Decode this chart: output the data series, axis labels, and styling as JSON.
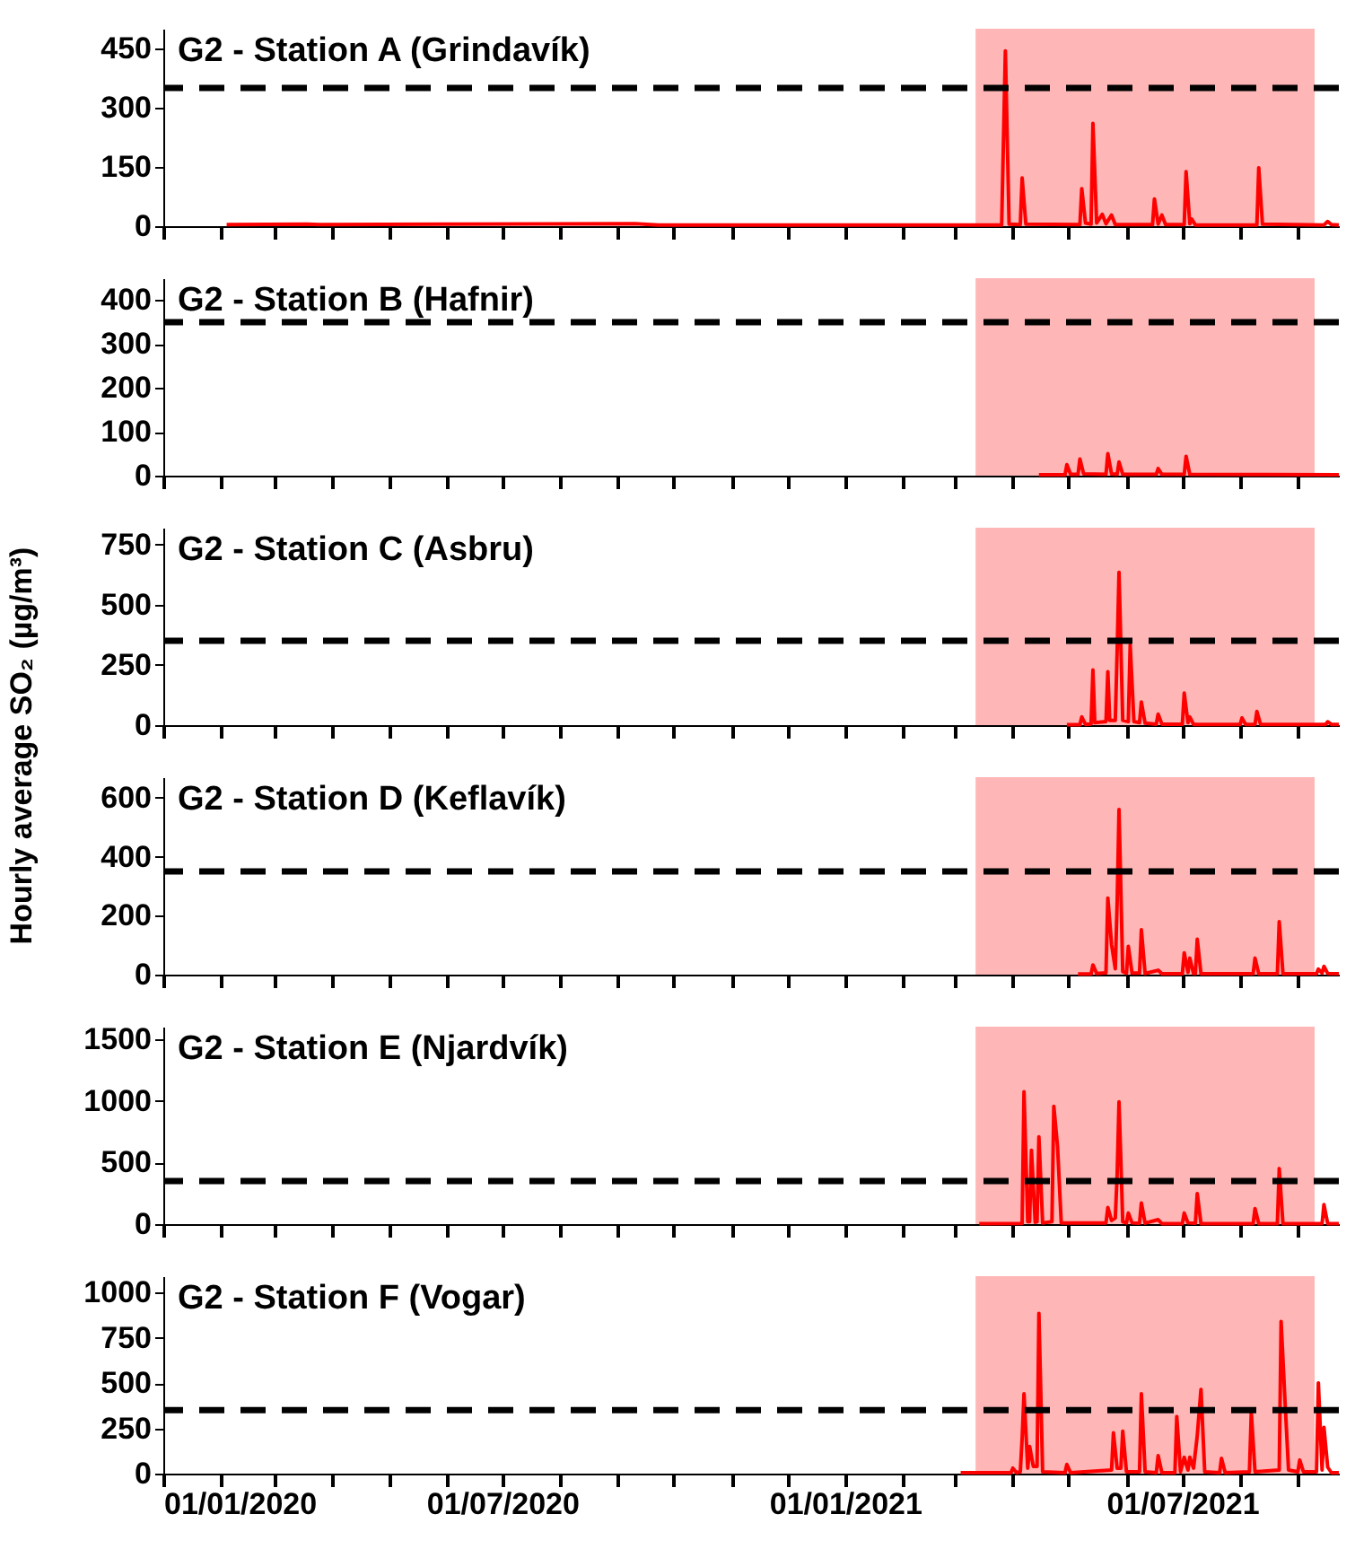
{
  "chart_data": [
    {
      "type": "line",
      "title": "G2 - Station A (Grindavík)",
      "xlim": [
        "2020-01-01",
        "2021-09-23"
      ],
      "ylim": [
        0,
        500
      ],
      "yticks": [
        0,
        150,
        300,
        450
      ],
      "tick_labels": "y",
      "line_style": "solid",
      "marker": "none",
      "xticks": [
        {
          "value": "2020-01-01",
          "label": null
        },
        {
          "value": "2020-02-01",
          "label": null
        },
        {
          "value": "2020-03-01",
          "label": null
        },
        {
          "value": "2020-04-01",
          "label": null
        },
        {
          "value": "2020-05-01",
          "label": null
        },
        {
          "value": "2020-06-01",
          "label": null
        },
        {
          "value": "2020-07-01",
          "label": null
        },
        {
          "value": "2020-08-01",
          "label": null
        },
        {
          "value": "2020-09-01",
          "label": null
        },
        {
          "value": "2020-10-01",
          "label": null
        },
        {
          "value": "2020-11-01",
          "label": null
        },
        {
          "value": "2020-12-01",
          "label": null
        },
        {
          "value": "2021-01-01",
          "label": null
        },
        {
          "value": "2021-02-01",
          "label": null
        },
        {
          "value": "2021-03-01",
          "label": null
        },
        {
          "value": "2021-04-01",
          "label": null
        },
        {
          "value": "2021-05-01",
          "label": null
        },
        {
          "value": "2021-06-01",
          "label": null
        },
        {
          "value": "2021-07-01",
          "label": null
        },
        {
          "value": "2021-08-01",
          "label": null
        },
        {
          "value": "2021-09-01",
          "label": null
        }
      ],
      "ref_lines": [
        {
          "axis": "y",
          "value": 350,
          "color": "#000000",
          "line_style": "dashed"
        }
      ],
      "bands": [
        {
          "axis": "x",
          "from": "2021-03-12",
          "to": "2021-09-10",
          "color": "#ffb6b6"
        }
      ],
      "series": [
        {
          "color": "#ff0000",
          "x": [
            "2020-02-04",
            "2020-03-18",
            "2020-03-25",
            "2020-06-01",
            "2020-09-10",
            "2020-09-23",
            "2021-02-16",
            "2021-03-26",
            "2021-03-28",
            "2021-03-30",
            "2021-04-05",
            "2021-04-06",
            "2021-04-08",
            "2021-05-07",
            "2021-05-08",
            "2021-05-10",
            "2021-05-13",
            "2021-05-14",
            "2021-05-16",
            "2021-05-19",
            "2021-05-21",
            "2021-05-24",
            "2021-05-26",
            "2021-06-15",
            "2021-06-16",
            "2021-06-18",
            "2021-06-20",
            "2021-06-22",
            "2021-07-02",
            "2021-07-03",
            "2021-07-05",
            "2021-07-06",
            "2021-07-08",
            "2021-08-10",
            "2021-08-11",
            "2021-08-13",
            "2021-09-15",
            "2021-09-17",
            "2021-09-19",
            "2021-09-23"
          ],
          "values": [
            4,
            5,
            4,
            5,
            6,
            3,
            3,
            3,
            444,
            5,
            4,
            122,
            5,
            4,
            95,
            8,
            5,
            260,
            8,
            30,
            6,
            28,
            4,
            4,
            69,
            5,
            28,
            4,
            4,
            138,
            6,
            18,
            3,
            3,
            148,
            5,
            3,
            12,
            4,
            3
          ]
        }
      ]
    },
    {
      "type": "line",
      "title": "G2 - Station B (Hafnir)",
      "xlim": [
        "2020-01-01",
        "2021-09-23"
      ],
      "ylim": [
        0,
        450
      ],
      "yticks": [
        0,
        100,
        200,
        300,
        400
      ],
      "tick_labels": "y",
      "line_style": "solid",
      "marker": "none",
      "xticks": [
        {
          "value": "2020-01-01",
          "label": null
        },
        {
          "value": "2020-02-01",
          "label": null
        },
        {
          "value": "2020-03-01",
          "label": null
        },
        {
          "value": "2020-04-01",
          "label": null
        },
        {
          "value": "2020-05-01",
          "label": null
        },
        {
          "value": "2020-06-01",
          "label": null
        },
        {
          "value": "2020-07-01",
          "label": null
        },
        {
          "value": "2020-08-01",
          "label": null
        },
        {
          "value": "2020-09-01",
          "label": null
        },
        {
          "value": "2020-10-01",
          "label": null
        },
        {
          "value": "2020-11-01",
          "label": null
        },
        {
          "value": "2020-12-01",
          "label": null
        },
        {
          "value": "2021-01-01",
          "label": null
        },
        {
          "value": "2021-02-01",
          "label": null
        },
        {
          "value": "2021-03-01",
          "label": null
        },
        {
          "value": "2021-04-01",
          "label": null
        },
        {
          "value": "2021-05-01",
          "label": null
        },
        {
          "value": "2021-06-01",
          "label": null
        },
        {
          "value": "2021-07-01",
          "label": null
        },
        {
          "value": "2021-08-01",
          "label": null
        },
        {
          "value": "2021-09-01",
          "label": null
        }
      ],
      "ref_lines": [
        {
          "axis": "y",
          "value": 350,
          "color": "#000000",
          "line_style": "dashed"
        }
      ],
      "bands": [
        {
          "axis": "x",
          "from": "2021-03-12",
          "to": "2021-09-10",
          "color": "#ffb6b6"
        }
      ],
      "series": [
        {
          "color": "#ff0000",
          "x": [
            "2021-04-15",
            "2021-04-29",
            "2021-04-30",
            "2021-05-02",
            "2021-05-06",
            "2021-05-07",
            "2021-05-09",
            "2021-05-21",
            "2021-05-22",
            "2021-05-24",
            "2021-05-27",
            "2021-05-28",
            "2021-05-30",
            "2021-06-17",
            "2021-06-18",
            "2021-06-20",
            "2021-07-02",
            "2021-07-03",
            "2021-07-05",
            "2021-09-23"
          ],
          "values": [
            2,
            2,
            25,
            3,
            3,
            38,
            4,
            3,
            50,
            4,
            3,
            31,
            3,
            3,
            16,
            3,
            3,
            44,
            3,
            2
          ]
        }
      ]
    },
    {
      "type": "line",
      "title": "G2 - Station C (Asbru)",
      "xlim": [
        "2020-01-01",
        "2021-09-23"
      ],
      "ylim": [
        0,
        820
      ],
      "yticks": [
        0,
        250,
        500,
        750
      ],
      "tick_labels": "y",
      "line_style": "solid",
      "marker": "none",
      "xticks": [
        {
          "value": "2020-01-01",
          "label": null
        },
        {
          "value": "2020-02-01",
          "label": null
        },
        {
          "value": "2020-03-01",
          "label": null
        },
        {
          "value": "2020-04-01",
          "label": null
        },
        {
          "value": "2020-05-01",
          "label": null
        },
        {
          "value": "2020-06-01",
          "label": null
        },
        {
          "value": "2020-07-01",
          "label": null
        },
        {
          "value": "2020-08-01",
          "label": null
        },
        {
          "value": "2020-09-01",
          "label": null
        },
        {
          "value": "2020-10-01",
          "label": null
        },
        {
          "value": "2020-11-01",
          "label": null
        },
        {
          "value": "2020-12-01",
          "label": null
        },
        {
          "value": "2021-01-01",
          "label": null
        },
        {
          "value": "2021-02-01",
          "label": null
        },
        {
          "value": "2021-03-01",
          "label": null
        },
        {
          "value": "2021-04-01",
          "label": null
        },
        {
          "value": "2021-05-01",
          "label": null
        },
        {
          "value": "2021-06-01",
          "label": null
        },
        {
          "value": "2021-07-01",
          "label": null
        },
        {
          "value": "2021-08-01",
          "label": null
        },
        {
          "value": "2021-09-01",
          "label": null
        }
      ],
      "ref_lines": [
        {
          "axis": "y",
          "value": 350,
          "color": "#000000",
          "line_style": "dashed"
        }
      ],
      "bands": [
        {
          "axis": "x",
          "from": "2021-03-12",
          "to": "2021-09-10",
          "color": "#ffb6b6"
        }
      ],
      "series": [
        {
          "color": "#ff0000",
          "x": [
            "2021-04-30",
            "2021-05-07",
            "2021-05-08",
            "2021-05-10",
            "2021-05-13",
            "2021-05-14",
            "2021-05-15",
            "2021-05-21",
            "2021-05-22",
            "2021-05-23",
            "2021-05-26",
            "2021-05-27",
            "2021-05-28",
            "2021-05-30",
            "2021-06-02",
            "2021-06-03",
            "2021-06-05",
            "2021-06-08",
            "2021-06-09",
            "2021-06-11",
            "2021-06-17",
            "2021-06-18",
            "2021-06-20",
            "2021-07-01",
            "2021-07-02",
            "2021-07-04",
            "2021-07-05",
            "2021-07-07",
            "2021-08-01",
            "2021-08-02",
            "2021-08-04",
            "2021-08-09",
            "2021-08-10",
            "2021-08-12",
            "2021-09-16",
            "2021-09-17",
            "2021-09-19",
            "2021-09-23"
          ],
          "values": [
            2,
            2,
            34,
            3,
            5,
            229,
            10,
            15,
            222,
            20,
            20,
            310,
            635,
            20,
            15,
            333,
            15,
            10,
            96,
            8,
            4,
            46,
            4,
            4,
            133,
            10,
            34,
            3,
            3,
            30,
            3,
            3,
            57,
            3,
            3,
            14,
            3,
            3
          ]
        }
      ]
    },
    {
      "type": "line",
      "title": "G2 - Station D (Keflavík)",
      "ylabel": "Hourly average SO₂ (µg/m³)",
      "xlim": [
        "2020-01-01",
        "2021-09-23"
      ],
      "ylim": [
        0,
        670
      ],
      "yticks": [
        0,
        200,
        400,
        600
      ],
      "tick_labels": "y",
      "line_style": "solid",
      "marker": "none",
      "xticks": [
        {
          "value": "2020-01-01",
          "label": null
        },
        {
          "value": "2020-02-01",
          "label": null
        },
        {
          "value": "2020-03-01",
          "label": null
        },
        {
          "value": "2020-04-01",
          "label": null
        },
        {
          "value": "2020-05-01",
          "label": null
        },
        {
          "value": "2020-06-01",
          "label": null
        },
        {
          "value": "2020-07-01",
          "label": null
        },
        {
          "value": "2020-08-01",
          "label": null
        },
        {
          "value": "2020-09-01",
          "label": null
        },
        {
          "value": "2020-10-01",
          "label": null
        },
        {
          "value": "2020-11-01",
          "label": null
        },
        {
          "value": "2020-12-01",
          "label": null
        },
        {
          "value": "2021-01-01",
          "label": null
        },
        {
          "value": "2021-02-01",
          "label": null
        },
        {
          "value": "2021-03-01",
          "label": null
        },
        {
          "value": "2021-04-01",
          "label": null
        },
        {
          "value": "2021-05-01",
          "label": null
        },
        {
          "value": "2021-06-01",
          "label": null
        },
        {
          "value": "2021-07-01",
          "label": null
        },
        {
          "value": "2021-08-01",
          "label": null
        },
        {
          "value": "2021-09-01",
          "label": null
        }
      ],
      "ref_lines": [
        {
          "axis": "y",
          "value": 350,
          "color": "#000000",
          "line_style": "dashed"
        }
      ],
      "bands": [
        {
          "axis": "x",
          "from": "2021-03-12",
          "to": "2021-09-10",
          "color": "#ffb6b6"
        }
      ],
      "series": [
        {
          "color": "#ff0000",
          "x": [
            "2021-05-06",
            "2021-05-13",
            "2021-05-14",
            "2021-05-16",
            "2021-05-21",
            "2021-05-22",
            "2021-05-24",
            "2021-05-26",
            "2021-05-27",
            "2021-05-28",
            "2021-05-30",
            "2021-06-01",
            "2021-06-02",
            "2021-06-04",
            "2021-06-08",
            "2021-06-09",
            "2021-06-11",
            "2021-06-18",
            "2021-06-20",
            "2021-07-01",
            "2021-07-02",
            "2021-07-04",
            "2021-07-05",
            "2021-07-07",
            "2021-07-08",
            "2021-07-09",
            "2021-07-11",
            "2021-08-08",
            "2021-08-09",
            "2021-08-11",
            "2021-08-21",
            "2021-08-22",
            "2021-08-24",
            "2021-09-11",
            "2021-09-12",
            "2021-09-14",
            "2021-09-15",
            "2021-09-17",
            "2021-09-23"
          ],
          "values": [
            2,
            2,
            33,
            4,
            6,
            260,
            102,
            20,
            246,
            560,
            10,
            5,
            96,
            5,
            5,
            152,
            4,
            15,
            3,
            3,
            74,
            8,
            56,
            4,
            4,
            120,
            3,
            3,
            56,
            3,
            3,
            180,
            3,
            3,
            19,
            5,
            28,
            4,
            3
          ]
        }
      ]
    },
    {
      "type": "line",
      "title": "G2 - Station E (Njardvík)",
      "xlim": [
        "2020-01-01",
        "2021-09-23"
      ],
      "ylim": [
        0,
        1600
      ],
      "yticks": [
        0,
        500,
        1000,
        1500
      ],
      "tick_labels": "y",
      "line_style": "solid",
      "marker": "none",
      "xticks": [
        {
          "value": "2020-01-01",
          "label": null
        },
        {
          "value": "2020-02-01",
          "label": null
        },
        {
          "value": "2020-03-01",
          "label": null
        },
        {
          "value": "2020-04-01",
          "label": null
        },
        {
          "value": "2020-05-01",
          "label": null
        },
        {
          "value": "2020-06-01",
          "label": null
        },
        {
          "value": "2020-07-01",
          "label": null
        },
        {
          "value": "2020-08-01",
          "label": null
        },
        {
          "value": "2020-09-01",
          "label": null
        },
        {
          "value": "2020-10-01",
          "label": null
        },
        {
          "value": "2020-11-01",
          "label": null
        },
        {
          "value": "2020-12-01",
          "label": null
        },
        {
          "value": "2021-01-01",
          "label": null
        },
        {
          "value": "2021-02-01",
          "label": null
        },
        {
          "value": "2021-03-01",
          "label": null
        },
        {
          "value": "2021-04-01",
          "label": null
        },
        {
          "value": "2021-05-01",
          "label": null
        },
        {
          "value": "2021-06-01",
          "label": null
        },
        {
          "value": "2021-07-01",
          "label": null
        },
        {
          "value": "2021-08-01",
          "label": null
        },
        {
          "value": "2021-09-01",
          "label": null
        }
      ],
      "ref_lines": [
        {
          "axis": "y",
          "value": 350,
          "color": "#000000",
          "line_style": "dashed"
        }
      ],
      "bands": [
        {
          "axis": "x",
          "from": "2021-03-12",
          "to": "2021-09-10",
          "color": "#ffb6b6"
        }
      ],
      "series": [
        {
          "color": "#ff0000",
          "x": [
            "2021-03-14",
            "2021-04-06",
            "2021-04-07",
            "2021-04-09",
            "2021-04-10",
            "2021-04-11",
            "2021-04-13",
            "2021-04-14",
            "2021-04-15",
            "2021-04-17",
            "2021-04-22",
            "2021-04-23",
            "2021-04-25",
            "2021-04-27",
            "2021-05-21",
            "2021-05-22",
            "2021-05-24",
            "2021-05-26",
            "2021-05-27",
            "2021-05-28",
            "2021-05-30",
            "2021-06-01",
            "2021-06-02",
            "2021-06-04",
            "2021-06-08",
            "2021-06-09",
            "2021-06-11",
            "2021-06-18",
            "2021-06-20",
            "2021-07-01",
            "2021-07-02",
            "2021-07-04",
            "2021-07-08",
            "2021-07-09",
            "2021-07-11",
            "2021-08-08",
            "2021-08-09",
            "2021-08-11",
            "2021-08-21",
            "2021-08-22",
            "2021-08-24",
            "2021-09-14",
            "2021-09-15",
            "2021-09-17",
            "2021-09-23"
          ],
          "values": [
            3,
            5,
            1072,
            20,
            20,
            599,
            15,
            20,
            707,
            10,
            20,
            955,
            630,
            10,
            10,
            135,
            30,
            50,
            405,
            991,
            20,
            10,
            90,
            10,
            8,
            171,
            8,
            36,
            4,
            4,
            90,
            10,
            8,
            248,
            4,
            3,
            126,
            3,
            3,
            450,
            3,
            3,
            158,
            4,
            3
          ]
        }
      ]
    },
    {
      "type": "line",
      "title": "G2 - Station F (Vogar)",
      "xlim": [
        "2020-01-01",
        "2021-09-23"
      ],
      "ylim": [
        0,
        1090
      ],
      "yticks": [
        0,
        250,
        500,
        750,
        1000
      ],
      "line_style": "solid",
      "marker": "none",
      "xticks": [
        {
          "value": "2020-01-01",
          "label": "01/01/2020"
        },
        {
          "value": "2020-02-01",
          "label": null
        },
        {
          "value": "2020-03-01",
          "label": null
        },
        {
          "value": "2020-04-01",
          "label": null
        },
        {
          "value": "2020-05-01",
          "label": null
        },
        {
          "value": "2020-06-01",
          "label": null
        },
        {
          "value": "2020-07-01",
          "label": "01/07/2020"
        },
        {
          "value": "2020-08-01",
          "label": null
        },
        {
          "value": "2020-09-01",
          "label": null
        },
        {
          "value": "2020-10-01",
          "label": null
        },
        {
          "value": "2020-11-01",
          "label": null
        },
        {
          "value": "2020-12-01",
          "label": null
        },
        {
          "value": "2021-01-01",
          "label": "01/01/2021"
        },
        {
          "value": "2021-02-01",
          "label": null
        },
        {
          "value": "2021-03-01",
          "label": null
        },
        {
          "value": "2021-04-01",
          "label": null
        },
        {
          "value": "2021-05-01",
          "label": null
        },
        {
          "value": "2021-06-01",
          "label": null
        },
        {
          "value": "2021-07-01",
          "label": "01/07/2021"
        },
        {
          "value": "2021-08-01",
          "label": null
        },
        {
          "value": "2021-09-01",
          "label": null
        }
      ],
      "ref_lines": [
        {
          "axis": "y",
          "value": 350,
          "color": "#000000",
          "line_style": "dashed"
        }
      ],
      "bands": [
        {
          "axis": "x",
          "from": "2021-03-12",
          "to": "2021-09-10",
          "color": "#ffb6b6"
        }
      ],
      "series": [
        {
          "color": "#ff0000",
          "x": [
            "2021-03-04",
            "2021-03-31",
            "2021-04-01",
            "2021-04-03",
            "2021-04-05",
            "2021-04-06",
            "2021-04-07",
            "2021-04-09",
            "2021-04-10",
            "2021-04-12",
            "2021-04-14",
            "2021-04-15",
            "2021-04-17",
            "2021-04-29",
            "2021-04-30",
            "2021-05-02",
            "2021-05-24",
            "2021-05-25",
            "2021-05-27",
            "2021-05-29",
            "2021-05-30",
            "2021-06-01",
            "2021-06-08",
            "2021-06-09",
            "2021-06-11",
            "2021-06-17",
            "2021-06-18",
            "2021-06-20",
            "2021-06-27",
            "2021-06-28",
            "2021-06-30",
            "2021-07-02",
            "2021-07-04",
            "2021-07-05",
            "2021-07-07",
            "2021-07-09",
            "2021-07-11",
            "2021-07-13",
            "2021-07-21",
            "2021-07-22",
            "2021-07-24",
            "2021-08-06",
            "2021-08-07",
            "2021-08-09",
            "2021-08-22",
            "2021-08-23",
            "2021-08-25",
            "2021-08-27",
            "2021-09-01",
            "2021-09-02",
            "2021-09-04",
            "2021-09-11",
            "2021-09-12",
            "2021-09-14",
            "2021-09-15",
            "2021-09-17",
            "2021-09-19",
            "2021-09-23"
          ],
          "values": [
            5,
            5,
            30,
            5,
            10,
            195,
            441,
            30,
            150,
            40,
            40,
            885,
            10,
            5,
            51,
            5,
            20,
            225,
            30,
            30,
            234,
            10,
            10,
            441,
            10,
            5,
            99,
            5,
            5,
            315,
            10,
            90,
            20,
            90,
            30,
            210,
            465,
            10,
            5,
            84,
            5,
            10,
            336,
            10,
            20,
            840,
            420,
            20,
            10,
            75,
            10,
            10,
            501,
            20,
            255,
            36,
            5,
            5
          ]
        }
      ]
    }
  ]
}
